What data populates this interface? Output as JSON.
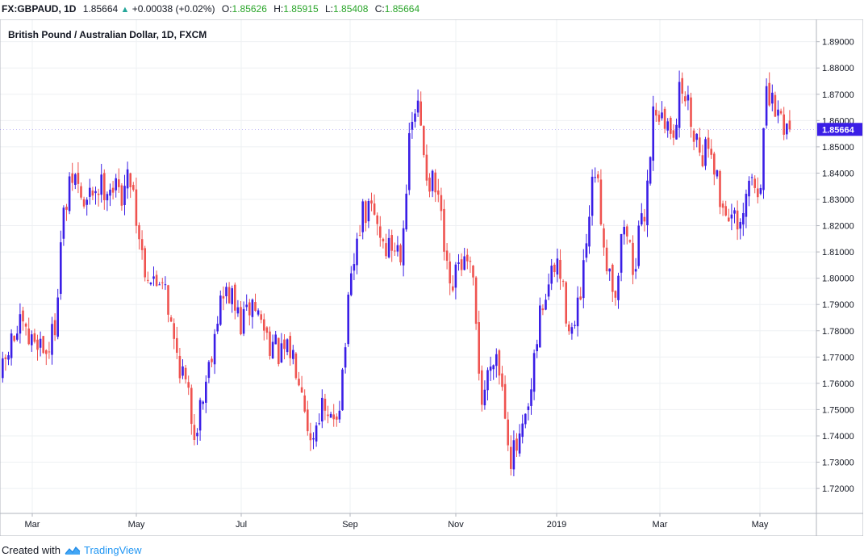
{
  "header": {
    "symbol": "FX:GBPAUD, 1D",
    "last": "1.85664",
    "change": "+0.00038 (+0.02%)",
    "o_label": "O:",
    "o_value": "1.85626",
    "h_label": "H:",
    "h_value": "1.85915",
    "l_label": "L:",
    "l_value": "1.85408",
    "c_label": "C:",
    "c_value": "1.85664"
  },
  "footer": {
    "prefix": "Created with",
    "brand": "TradingView",
    "logo_icon": "tradingview-logo-icon"
  },
  "colors": {
    "up": "#3a1ee6",
    "down": "#ef5350",
    "last_price_tag": "#3a1ee6",
    "grid": "#eef0f3"
  },
  "chart_data": {
    "type": "candlestick",
    "title": "British Pound / Australian Dollar, 1D, FXCM",
    "y_ticks": [
      "1.72000",
      "1.73000",
      "1.74000",
      "1.75000",
      "1.76000",
      "1.77000",
      "1.78000",
      "1.79000",
      "1.80000",
      "1.81000",
      "1.82000",
      "1.83000",
      "1.84000",
      "1.85000",
      "1.86000",
      "1.87000",
      "1.88000",
      "1.89000"
    ],
    "x_ticks": [
      "Mar",
      "May",
      "Jul",
      "Sep",
      "Nov",
      "2019",
      "Mar",
      "May"
    ],
    "last_price": "1.85664",
    "ylim": [
      1.7105,
      1.8985
    ],
    "grid": true,
    "price_path": [
      [
        0,
        1.762
      ],
      [
        12,
        1.775
      ],
      [
        24,
        1.781
      ],
      [
        36,
        1.775
      ],
      [
        44,
        1.778
      ],
      [
        56,
        1.772
      ],
      [
        66,
        1.78
      ],
      [
        76,
        1.821
      ],
      [
        90,
        1.84
      ],
      [
        104,
        1.826
      ],
      [
        114,
        1.834
      ],
      [
        134,
        1.836
      ],
      [
        148,
        1.832
      ],
      [
        162,
        1.84
      ],
      [
        168,
        1.822
      ],
      [
        178,
        1.805
      ],
      [
        190,
        1.797
      ],
      [
        202,
        1.803
      ],
      [
        212,
        1.778
      ],
      [
        226,
        1.763
      ],
      [
        240,
        1.742
      ],
      [
        252,
        1.758
      ],
      [
        262,
        1.775
      ],
      [
        270,
        1.79
      ],
      [
        282,
        1.795
      ],
      [
        298,
        1.782
      ],
      [
        312,
        1.791
      ],
      [
        330,
        1.778
      ],
      [
        346,
        1.77
      ],
      [
        360,
        1.772
      ],
      [
        372,
        1.763
      ],
      [
        384,
        1.737
      ],
      [
        396,
        1.752
      ],
      [
        406,
        1.743
      ],
      [
        420,
        1.754
      ],
      [
        432,
        1.793
      ],
      [
        446,
        1.823
      ],
      [
        460,
        1.826
      ],
      [
        476,
        1.812
      ],
      [
        496,
        1.812
      ],
      [
        508,
        1.857
      ],
      [
        516,
        1.866
      ],
      [
        528,
        1.84
      ],
      [
        542,
        1.83
      ],
      [
        556,
        1.792
      ],
      [
        570,
        1.807
      ],
      [
        584,
        1.8
      ],
      [
        596,
        1.753
      ],
      [
        612,
        1.775
      ],
      [
        622,
        1.758
      ],
      [
        632,
        1.732
      ],
      [
        644,
        1.737
      ],
      [
        656,
        1.752
      ],
      [
        668,
        1.786
      ],
      [
        678,
        1.797
      ],
      [
        690,
        1.806
      ],
      [
        700,
        1.788
      ],
      [
        710,
        1.778
      ],
      [
        722,
        1.801
      ],
      [
        736,
        1.842
      ],
      [
        750,
        1.808
      ],
      [
        762,
        1.795
      ],
      [
        772,
        1.822
      ],
      [
        784,
        1.804
      ],
      [
        798,
        1.826
      ],
      [
        810,
        1.868
      ],
      [
        822,
        1.857
      ],
      [
        834,
        1.858
      ],
      [
        844,
        1.874
      ],
      [
        856,
        1.86
      ],
      [
        868,
        1.848
      ],
      [
        880,
        1.852
      ],
      [
        892,
        1.828
      ],
      [
        904,
        1.825
      ],
      [
        916,
        1.815
      ],
      [
        928,
        1.838
      ],
      [
        940,
        1.832
      ],
      [
        948,
        1.868
      ],
      [
        958,
        1.865
      ],
      [
        968,
        1.86
      ],
      [
        980,
        1.8566
      ]
    ]
  }
}
